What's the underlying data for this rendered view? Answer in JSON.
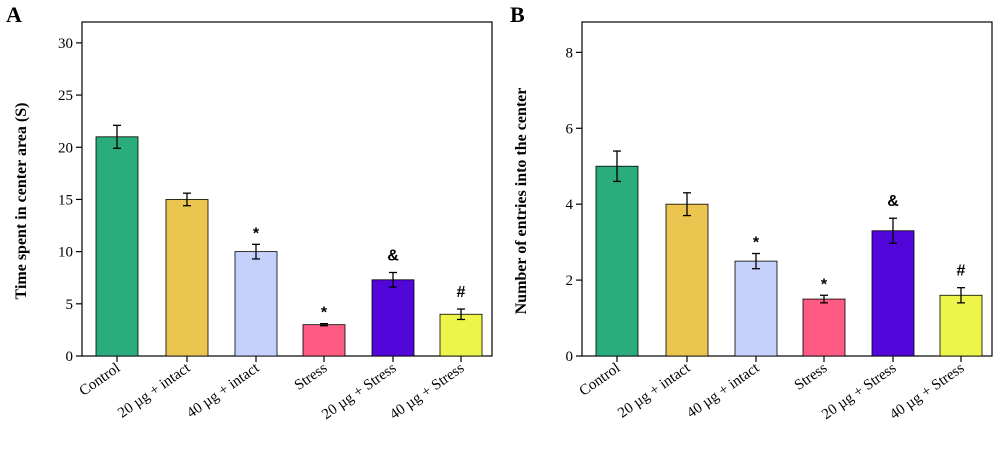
{
  "chart_data": [
    {
      "type": "bar",
      "panel": "A",
      "ylabel": "Time spent in center area (S)",
      "xlabel": "",
      "ylim": [
        0,
        32
      ],
      "yticks": [
        0,
        5,
        10,
        15,
        20,
        25,
        30
      ],
      "categories": [
        "Control",
        "20 µg + intact",
        "40 µg + intact",
        "Stress",
        "20 µg + Stress",
        "40 µg + Stress"
      ],
      "values": [
        21,
        15,
        10,
        3,
        7.3,
        4
      ],
      "errors": [
        1.1,
        0.6,
        0.7,
        0.1,
        0.7,
        0.5
      ],
      "colors": [
        "#2aac7c",
        "#ecc450",
        "#c5d0fb",
        "#fd5a84",
        "#5206d9",
        "#eef54a"
      ],
      "annotations": [
        "",
        "",
        "*",
        "*",
        "&",
        "#"
      ],
      "grid": false
    },
    {
      "type": "bar",
      "panel": "B",
      "ylabel": "Number of entries into the center",
      "xlabel": "",
      "ylim": [
        0,
        8.8
      ],
      "yticks": [
        0,
        2,
        4,
        6,
        8
      ],
      "categories": [
        "Control",
        "20 µg + intact",
        "40 µg + intact",
        "Stress",
        "20 µg + Stress",
        "40 µg + Stress"
      ],
      "values": [
        5,
        4,
        2.5,
        1.5,
        3.3,
        1.6
      ],
      "errors": [
        0.4,
        0.3,
        0.2,
        0.1,
        0.33,
        0.2
      ],
      "colors": [
        "#2aac7c",
        "#ecc450",
        "#c5d0fb",
        "#fd5a84",
        "#5206d9",
        "#eef54a"
      ],
      "annotations": [
        "",
        "",
        "*",
        "*",
        "&",
        "#"
      ],
      "grid": false
    }
  ]
}
